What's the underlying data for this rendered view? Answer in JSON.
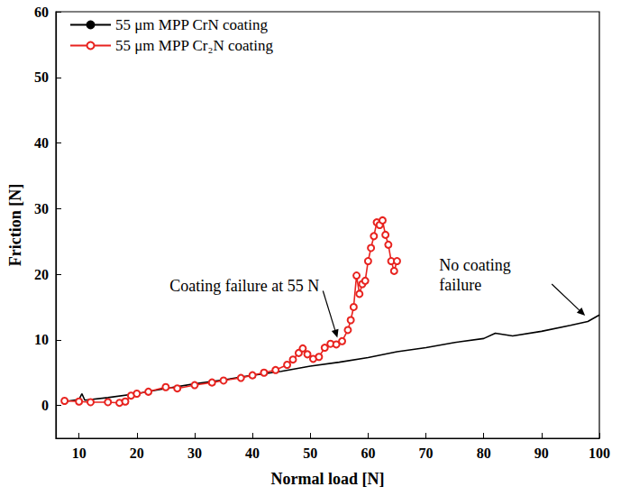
{
  "chart_data": {
    "type": "line",
    "x_label": "Normal load [N]",
    "y_label": "Friction [N]",
    "xlim": [
      6,
      100
    ],
    "ylim": [
      -5,
      60
    ],
    "xticks": [
      10,
      20,
      30,
      40,
      50,
      60,
      70,
      80,
      90,
      100
    ],
    "yticks": [
      0,
      10,
      20,
      30,
      40,
      50,
      60
    ],
    "grid": false,
    "legend": "upper left",
    "series": [
      {
        "name": "55 μm MPP CrN coating",
        "color": "#000000",
        "marker": "none",
        "line_style": "solid",
        "x": [
          7.5,
          10,
          10.5,
          11,
          15,
          20,
          25,
          30,
          35,
          40,
          45,
          50,
          55,
          60,
          65,
          70,
          75,
          80,
          82,
          85,
          90,
          95,
          98,
          100
        ],
        "values": [
          0.6,
          0.9,
          1.8,
          0.8,
          1.2,
          1.8,
          2.6,
          3.3,
          3.9,
          4.6,
          5.2,
          6.0,
          6.6,
          7.3,
          8.2,
          8.8,
          9.6,
          10.2,
          11.0,
          10.6,
          11.3,
          12.2,
          12.8,
          13.8
        ]
      },
      {
        "name": "55 μm MPP Cr₂N coating",
        "color": "#e8231f",
        "marker": "open_circle",
        "line_style": "solid",
        "x": [
          7.5,
          10,
          12,
          15,
          17,
          18,
          19,
          20,
          22,
          25,
          27,
          30,
          33,
          35,
          38,
          40,
          42,
          44,
          46,
          47,
          48,
          48.7,
          49.5,
          50.5,
          51.5,
          52.5,
          53.5,
          54.5,
          55.5,
          56.5,
          57,
          57.5,
          58,
          58.5,
          59,
          59.5,
          60,
          60.5,
          61,
          61.5,
          62,
          62.5,
          63,
          63.5,
          64,
          64.5,
          65
        ],
        "values": [
          0.7,
          0.6,
          0.5,
          0.5,
          0.4,
          0.6,
          1.5,
          1.8,
          2.1,
          2.8,
          2.6,
          3.1,
          3.5,
          3.8,
          4.2,
          4.6,
          5.0,
          5.4,
          6.2,
          7.0,
          8.0,
          8.7,
          7.8,
          7.1,
          7.4,
          8.8,
          9.4,
          9.3,
          9.8,
          11.5,
          13.0,
          15.0,
          19.8,
          17.0,
          18.5,
          19.0,
          22.0,
          24.0,
          25.8,
          27.9,
          27.5,
          28.2,
          26.0,
          24.5,
          22.0,
          20.5,
          22.0
        ]
      }
    ],
    "annotations": [
      {
        "text": "Coating failure at 55 N",
        "x": 55,
        "y": 9.5
      },
      {
        "text": "No coating failure",
        "x": 98,
        "y": 13
      }
    ]
  }
}
